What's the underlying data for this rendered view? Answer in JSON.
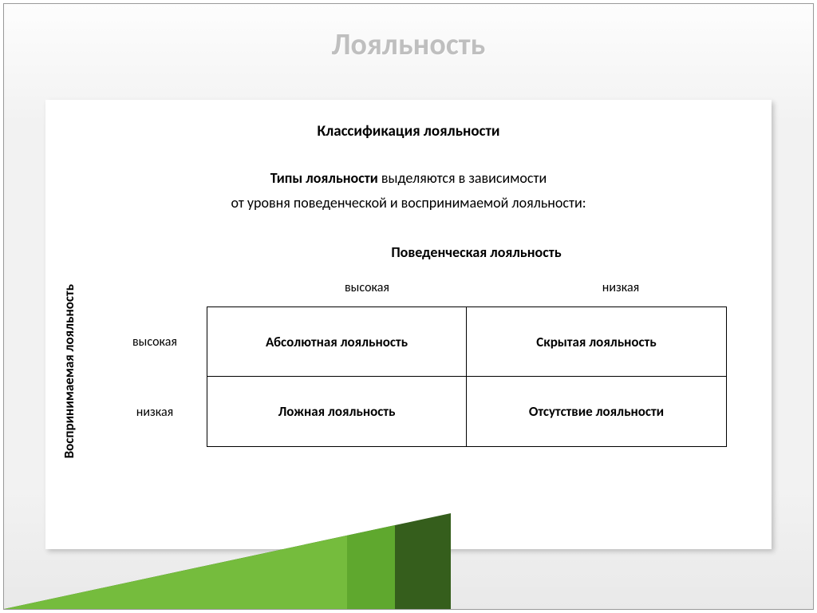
{
  "title": "Лояльность",
  "subtitle": "Классификация лояльности",
  "description_bold": "Типы лояльности",
  "description_rest": " выделяются в зависимости",
  "description_line2": "от уровня поведенческой и воспринимаемой лояльности:",
  "axis_top": "Поведенческая лояльность",
  "axis_left": "Воспринимаемая лояльность",
  "col_headers": [
    "высокая",
    "низкая"
  ],
  "row_labels": [
    "высокая",
    "низкая"
  ],
  "matrix": {
    "cells": [
      [
        "Абсолютная лояльность",
        "Скрытая лояльность"
      ],
      [
        "Ложная лояльность",
        "Отсутствие лояльности"
      ]
    ],
    "border_color": "#000000",
    "cell_bg": "#ffffff",
    "cell_font_weight": "bold",
    "cell_fontsize": 17
  },
  "colors": {
    "title_color": "#bfbfbf",
    "text_color": "#000000",
    "slide_bg": "#f2f2f2",
    "content_bg": "#ffffff",
    "triangle_back": "#355e1c",
    "triangle_front": "#5fa82e",
    "triangle_highlight": "#8bcf4c"
  },
  "typography": {
    "title_fontsize": 38,
    "subtitle_fontsize": 19,
    "body_fontsize": 18,
    "label_fontsize": 16
  }
}
